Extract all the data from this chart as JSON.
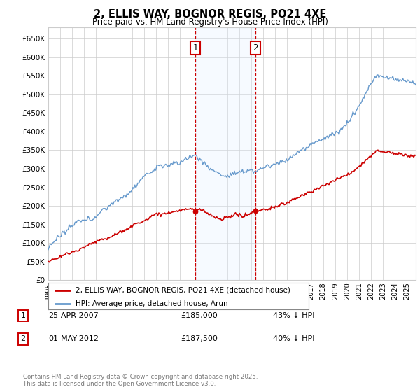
{
  "title": "2, ELLIS WAY, BOGNOR REGIS, PO21 4XE",
  "subtitle": "Price paid vs. HM Land Registry's House Price Index (HPI)",
  "legend_entry1": "2, ELLIS WAY, BOGNOR REGIS, PO21 4XE (detached house)",
  "legend_entry2": "HPI: Average price, detached house, Arun",
  "purchase1_date": "25-APR-2007",
  "purchase1_price": 185000,
  "purchase1_label": "43% ↓ HPI",
  "purchase2_date": "01-MAY-2012",
  "purchase2_price": 187500,
  "purchase2_label": "40% ↓ HPI",
  "copyright": "Contains HM Land Registry data © Crown copyright and database right 2025.\nThis data is licensed under the Open Government Licence v3.0.",
  "hpi_color": "#6699cc",
  "price_color": "#cc0000",
  "background_color": "#ffffff",
  "grid_color": "#cccccc",
  "shade_color": "#ddeeff",
  "annotation_box_color": "#cc0000",
  "ylim": [
    0,
    680000
  ],
  "yticks": [
    0,
    50000,
    100000,
    150000,
    200000,
    250000,
    300000,
    350000,
    400000,
    450000,
    500000,
    550000,
    600000,
    650000
  ],
  "purchase1_year": 2007.32,
  "purchase2_year": 2012.34,
  "xstart": 1995,
  "xend": 2025.75
}
